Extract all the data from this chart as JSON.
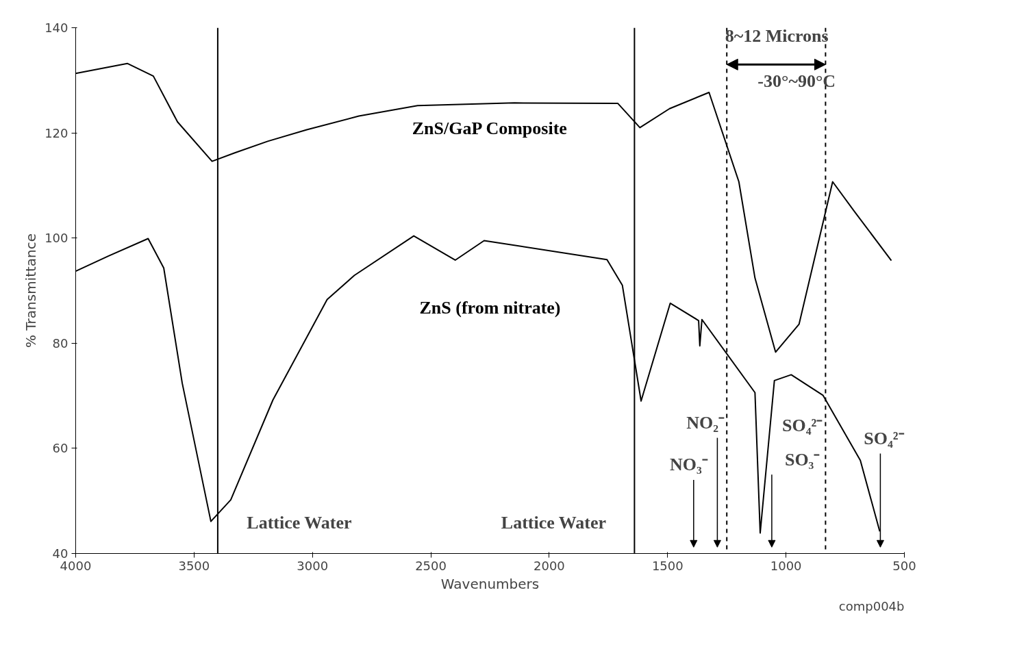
{
  "chart_data": {
    "type": "line",
    "xlabel": "Wavenumbers",
    "ylabel": "% Transmittance",
    "xlim": [
      4000,
      500
    ],
    "ylim": [
      40,
      140
    ],
    "xticks": [
      4000,
      3500,
      3000,
      2500,
      2000,
      1500,
      1000,
      500
    ],
    "yticks": [
      40,
      60,
      80,
      100,
      120,
      140
    ],
    "grid": false,
    "legend": false,
    "line_style": "solid",
    "marker": "none",
    "series": [
      {
        "name": "ZnS/GaP Composite",
        "color": "#000000",
        "x": [
          4000,
          3782,
          3672,
          3570,
          3424,
          3328,
          3189,
          3024,
          2804,
          2556,
          2147,
          1710,
          1617,
          1492,
          1325,
          1199,
          1131,
          1044,
          945,
          803,
          710,
          555
        ],
        "values": [
          131.3,
          133.2,
          130.8,
          122.1,
          114.6,
          116.2,
          118.4,
          120.6,
          123.2,
          125.2,
          125.7,
          125.6,
          121,
          124.6,
          127.7,
          110.7,
          92.4,
          78.3,
          83.6,
          110.7,
          105,
          95.7
        ]
      },
      {
        "name": "ZnS (from nitrate)",
        "color": "#000000",
        "x": [
          4000,
          3861,
          3694,
          3628,
          3550,
          3429,
          3345,
          3167,
          2938,
          2823,
          2572,
          2397,
          2275,
          1756,
          1691,
          1612,
          1489,
          1369,
          1364,
          1355,
          1131,
          1109,
          1049,
          978,
          844,
          686,
          604
        ],
        "values": [
          93.7,
          96.6,
          99.9,
          94.3,
          72.4,
          46.1,
          50.2,
          69.2,
          88.3,
          92.9,
          100.4,
          95.8,
          99.5,
          95.9,
          91,
          69,
          87.6,
          84.3,
          79.5,
          84.5,
          70.6,
          43.9,
          72.9,
          74,
          70.1,
          57.7,
          44.2
        ]
      }
    ],
    "ref_lines": [
      {
        "axis": "x",
        "value": 3400,
        "line_style": "solid",
        "color": "#000000"
      },
      {
        "axis": "x",
        "value": 1640,
        "line_style": "solid",
        "color": "#000000"
      },
      {
        "axis": "x",
        "value": 1250,
        "line_style": "dashed",
        "color": "#000000"
      },
      {
        "axis": "x",
        "value": 833,
        "line_style": "dashed",
        "color": "#000000"
      }
    ],
    "annotations": [
      "8~12 Microns",
      "-30°~90°C",
      "Lattice Water",
      "Lattice Water",
      "NO₃⁻",
      "NO₂⁻",
      "SO₄²⁻",
      "SO₃⁻",
      "SO₄²⁻",
      "comp004b"
    ]
  }
}
